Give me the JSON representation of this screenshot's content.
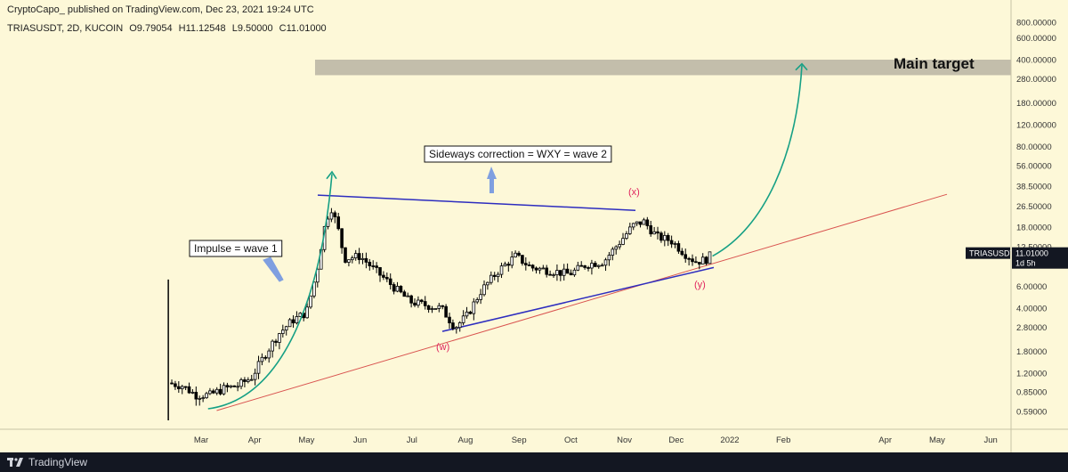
{
  "header": {
    "publisher": "CryptoCapo_ published on TradingView.com, Dec 23, 2021 19:24 UTC",
    "symbol": "TRIASUSDT, 2D, KUCOIN",
    "open": "O9.79054",
    "high": "H11.12548",
    "low": "L9.50000",
    "close": "C11.01000"
  },
  "footer": {
    "brand": "TradingView"
  },
  "chart_data": {
    "type": "candlestick",
    "y_scale": "log",
    "y_ticks": [
      {
        "label": "800.00000",
        "value": 800
      },
      {
        "label": "600.00000",
        "value": 600
      },
      {
        "label": "400.00000",
        "value": 400
      },
      {
        "label": "280.00000",
        "value": 280
      },
      {
        "label": "180.00000",
        "value": 180
      },
      {
        "label": "120.00000",
        "value": 120
      },
      {
        "label": "80.00000",
        "value": 80
      },
      {
        "label": "56.00000",
        "value": 56
      },
      {
        "label": "38.50000",
        "value": 38.5
      },
      {
        "label": "26.50000",
        "value": 26.5
      },
      {
        "label": "18.00000",
        "value": 18
      },
      {
        "label": "12.50000",
        "value": 12.5
      },
      {
        "label": "6.00000",
        "value": 6
      },
      {
        "label": "4.00000",
        "value": 4
      },
      {
        "label": "2.80000",
        "value": 2.8
      },
      {
        "label": "1.80000",
        "value": 1.8
      },
      {
        "label": "1.20000",
        "value": 1.2
      },
      {
        "label": "0.85000",
        "value": 0.85
      },
      {
        "label": "0.59000",
        "value": 0.59
      }
    ],
    "x_ticks": [
      {
        "label": "Mar",
        "date": "2021-03-01"
      },
      {
        "label": "Apr",
        "date": "2021-04-01"
      },
      {
        "label": "May",
        "date": "2021-05-01"
      },
      {
        "label": "Jun",
        "date": "2021-06-01"
      },
      {
        "label": "Jul",
        "date": "2021-07-01"
      },
      {
        "label": "Aug",
        "date": "2021-08-01"
      },
      {
        "label": "Sep",
        "date": "2021-09-01"
      },
      {
        "label": "Oct",
        "date": "2021-10-01"
      },
      {
        "label": "Nov",
        "date": "2021-11-01"
      },
      {
        "label": "Dec",
        "date": "2021-12-01"
      },
      {
        "label": "2022",
        "date": "2022-01-01"
      },
      {
        "label": "Feb",
        "date": "2022-02-01"
      },
      {
        "label": "Apr",
        "date": "2022-04-01"
      },
      {
        "label": "May",
        "date": "2022-05-01"
      },
      {
        "label": "Jun",
        "date": "2022-06-01"
      }
    ],
    "current_price": {
      "label": "11.01000",
      "symbol": "TRIASUSDT",
      "countdown": "1d 5h",
      "value": 11.01
    },
    "close_path": [
      {
        "date": "2021-02-10",
        "close": 1.0
      },
      {
        "date": "2021-02-18",
        "close": 0.95
      },
      {
        "date": "2021-02-26",
        "close": 0.8
      },
      {
        "date": "2021-03-06",
        "close": 0.8
      },
      {
        "date": "2021-03-14",
        "close": 0.9
      },
      {
        "date": "2021-03-22",
        "close": 0.95
      },
      {
        "date": "2021-03-30",
        "close": 1.1
      },
      {
        "date": "2021-04-07",
        "close": 1.7
      },
      {
        "date": "2021-04-15",
        "close": 2.5
      },
      {
        "date": "2021-04-23",
        "close": 3.2
      },
      {
        "date": "2021-05-01",
        "close": 3.7
      },
      {
        "date": "2021-05-07",
        "close": 8.0
      },
      {
        "date": "2021-05-11",
        "close": 17.0
      },
      {
        "date": "2021-05-15",
        "close": 26.5
      },
      {
        "date": "2021-05-19",
        "close": 18.0
      },
      {
        "date": "2021-05-23",
        "close": 10.0
      },
      {
        "date": "2021-06-01",
        "close": 10.5
      },
      {
        "date": "2021-06-10",
        "close": 8.0
      },
      {
        "date": "2021-06-20",
        "close": 6.0
      },
      {
        "date": "2021-06-30",
        "close": 4.5
      },
      {
        "date": "2021-07-10",
        "close": 4.2
      },
      {
        "date": "2021-07-18",
        "close": 4.0
      },
      {
        "date": "2021-07-26",
        "close": 2.8
      },
      {
        "date": "2021-08-02",
        "close": 3.5
      },
      {
        "date": "2021-08-10",
        "close": 5.5
      },
      {
        "date": "2021-08-20",
        "close": 8.0
      },
      {
        "date": "2021-08-30",
        "close": 10.5
      },
      {
        "date": "2021-09-08",
        "close": 8.5
      },
      {
        "date": "2021-09-20",
        "close": 8.0
      },
      {
        "date": "2021-09-30",
        "close": 7.5
      },
      {
        "date": "2021-10-10",
        "close": 9.0
      },
      {
        "date": "2021-10-20",
        "close": 9.5
      },
      {
        "date": "2021-10-30",
        "close": 14.0
      },
      {
        "date": "2021-11-06",
        "close": 18.5
      },
      {
        "date": "2021-11-12",
        "close": 20.0
      },
      {
        "date": "2021-11-20",
        "close": 15.0
      },
      {
        "date": "2021-11-28",
        "close": 14.0
      },
      {
        "date": "2021-12-06",
        "close": 11.0
      },
      {
        "date": "2021-12-12",
        "close": 9.5
      },
      {
        "date": "2021-12-18",
        "close": 9.8
      },
      {
        "date": "2021-12-22",
        "close": 11.01
      }
    ],
    "annotations": {
      "impulse": "Impulse = wave 1",
      "correction": "Sideways correction = WXY = wave 2",
      "target": "Main target",
      "target_zone": [
        300,
        400
      ],
      "wave_w": "(w)",
      "wave_x": "(x)",
      "wave_y": "(y)"
    },
    "colors": {
      "up_candle": "#ffffff",
      "down_candle": "#000000",
      "projection": "#16a085",
      "channel": "#2d2dbf",
      "trendline": "#d9534f",
      "target_zone": "#b9b4a3",
      "arrow": "#7f9fe0",
      "wave_label": "#e0245e"
    }
  }
}
